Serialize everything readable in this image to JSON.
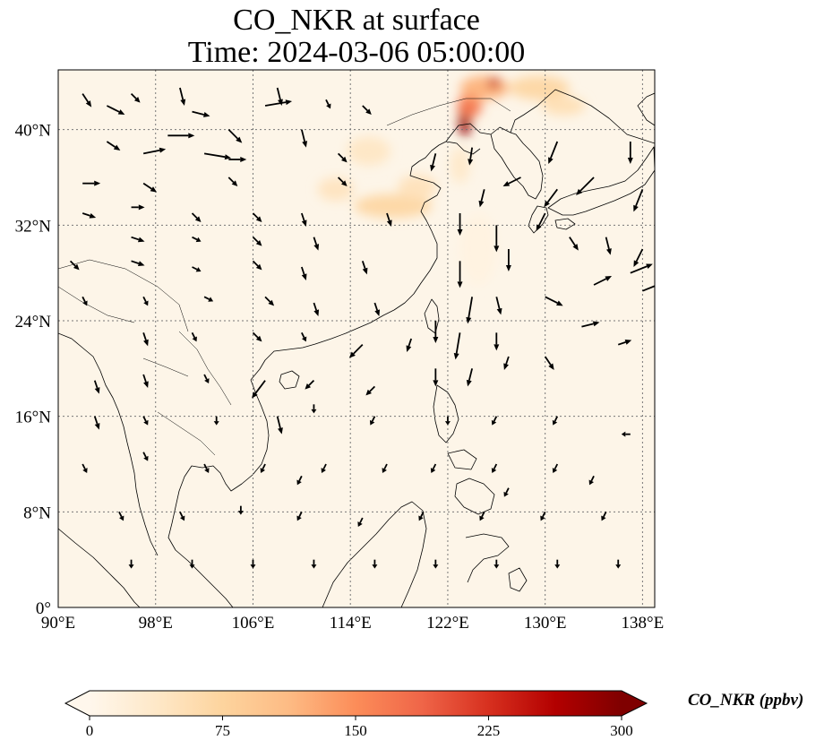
{
  "title": {
    "line1": "CO_NKR at surface",
    "line2": "Time: 2024-03-06 05:00:00"
  },
  "map": {
    "lon_range": [
      90,
      139
    ],
    "lat_range": [
      0,
      45
    ],
    "lon_ticks": [
      {
        "value": 90,
        "label": "90°E"
      },
      {
        "value": 98,
        "label": "98°E"
      },
      {
        "value": 106,
        "label": "106°E"
      },
      {
        "value": 114,
        "label": "114°E"
      },
      {
        "value": 122,
        "label": "122°E"
      },
      {
        "value": 130,
        "label": "130°E"
      },
      {
        "value": 138,
        "label": "138°E"
      }
    ],
    "lat_ticks": [
      {
        "value": 0,
        "label": "0°"
      },
      {
        "value": 8,
        "label": "8°N"
      },
      {
        "value": 16,
        "label": "16°N"
      },
      {
        "value": 24,
        "label": "24°N"
      },
      {
        "value": 32,
        "label": "32°N"
      },
      {
        "value": 40,
        "label": "40°N"
      }
    ],
    "gridlines": true,
    "background_color": "#fdf5e8",
    "plumes": [
      {
        "lon": 112.8,
        "lat": 35.0,
        "rlon": 1.5,
        "rlat": 1.0,
        "value": 45
      },
      {
        "lon": 115.5,
        "lat": 38.2,
        "rlon": 1.8,
        "rlat": 1.2,
        "value": 40
      },
      {
        "lon": 117.5,
        "lat": 33.6,
        "rlon": 3.2,
        "rlat": 1.0,
        "value": 70
      },
      {
        "lon": 119.5,
        "lat": 35.2,
        "rlon": 1.6,
        "rlat": 1.0,
        "value": 50
      },
      {
        "lon": 123.4,
        "lat": 40.8,
        "rlon": 0.5,
        "rlat": 1.4,
        "value": 285
      },
      {
        "lon": 123.8,
        "lat": 42.0,
        "rlon": 1.0,
        "rlat": 1.0,
        "value": 170
      },
      {
        "lon": 125.0,
        "lat": 43.5,
        "rlon": 2.0,
        "rlat": 1.0,
        "value": 120
      },
      {
        "lon": 125.8,
        "lat": 43.9,
        "rlon": 0.5,
        "rlat": 0.4,
        "value": 250
      },
      {
        "lon": 129.5,
        "lat": 43.5,
        "rlon": 2.5,
        "rlat": 1.0,
        "value": 70
      },
      {
        "lon": 131.5,
        "lat": 42.0,
        "rlon": 1.8,
        "rlat": 0.8,
        "value": 55
      },
      {
        "lon": 123.0,
        "lat": 37.0,
        "rlon": 0.8,
        "rlat": 1.5,
        "value": 35
      },
      {
        "lon": 124.5,
        "lat": 30.0,
        "rlon": 1.5,
        "rlat": 3.0,
        "value": 12
      }
    ],
    "wind_vectors": [
      [
        92,
        43,
        1,
        -1.5
      ],
      [
        96,
        43,
        1,
        -1
      ],
      [
        100,
        43.5,
        0.5,
        -2
      ],
      [
        108,
        43.5,
        0.5,
        -2
      ],
      [
        112,
        42.5,
        0.5,
        -1
      ],
      [
        94,
        42,
        2,
        -1
      ],
      [
        101,
        41.5,
        2,
        -0.5
      ],
      [
        107,
        42,
        3,
        0.5
      ],
      [
        115,
        42,
        1,
        -1
      ],
      [
        94,
        39,
        1.5,
        -1
      ],
      [
        99,
        39.5,
        3,
        0
      ],
      [
        104,
        40,
        1.5,
        -1.5
      ],
      [
        110,
        40,
        0.5,
        -2
      ],
      [
        97,
        38,
        2.5,
        0.5
      ],
      [
        102,
        38,
        3,
        -0.5
      ],
      [
        104,
        37.5,
        2,
        0
      ],
      [
        113,
        38,
        1,
        -1
      ],
      [
        92,
        35.5,
        2,
        0
      ],
      [
        97,
        35.5,
        1.5,
        -1
      ],
      [
        104,
        36,
        1,
        -1
      ],
      [
        113,
        36,
        1,
        -1
      ],
      [
        92,
        33,
        1.5,
        -0.5
      ],
      [
        96,
        33.5,
        1.5,
        0
      ],
      [
        101,
        33,
        1,
        -1
      ],
      [
        106,
        33,
        1,
        -1
      ],
      [
        110,
        33,
        0.5,
        -1.5
      ],
      [
        117,
        33,
        0.5,
        -1.5
      ],
      [
        96,
        31,
        1.5,
        -0.5
      ],
      [
        101,
        31,
        1,
        -0.5
      ],
      [
        106,
        31,
        1,
        -1
      ],
      [
        111,
        31,
        0.5,
        -1.5
      ],
      [
        91,
        29,
        1,
        -1
      ],
      [
        96,
        29,
        1.5,
        -0.5
      ],
      [
        101,
        28.5,
        1,
        -0.5
      ],
      [
        106,
        29,
        1,
        -1
      ],
      [
        110,
        28.5,
        0.5,
        -1.5
      ],
      [
        115,
        29,
        0.5,
        -1.5
      ],
      [
        92,
        26,
        0.5,
        -1
      ],
      [
        97,
        26,
        0.5,
        -1
      ],
      [
        102,
        26,
        1,
        -0.5
      ],
      [
        107,
        26,
        1,
        -1
      ],
      [
        111,
        25.5,
        0.5,
        -1.5
      ],
      [
        116,
        25.5,
        0.5,
        -1.5
      ],
      [
        97,
        23,
        0.5,
        -1.5
      ],
      [
        101,
        23,
        0.5,
        -1
      ],
      [
        106,
        23,
        1,
        -1
      ],
      [
        110,
        23,
        0.5,
        -1
      ],
      [
        115,
        22,
        -1.5,
        -1.5
      ],
      [
        119,
        22.5,
        -0.5,
        -1.5
      ],
      [
        93,
        19,
        0.5,
        -1.5
      ],
      [
        97,
        19.5,
        0.5,
        -1.5
      ],
      [
        102,
        19.5,
        0.5,
        -1
      ],
      [
        107,
        19,
        -1.5,
        -2
      ],
      [
        111,
        19,
        -1,
        -1
      ],
      [
        116,
        18.5,
        -1,
        -1
      ],
      [
        93,
        16,
        0.5,
        -1.5
      ],
      [
        97,
        16,
        0.5,
        -1
      ],
      [
        103,
        16,
        0,
        -1
      ],
      [
        108,
        16,
        0.5,
        -2
      ],
      [
        111,
        17,
        0,
        -1
      ],
      [
        116,
        16,
        -0.5,
        -1
      ],
      [
        92,
        12,
        0.5,
        -1
      ],
      [
        97,
        13,
        0.5,
        -1
      ],
      [
        102,
        12,
        0.5,
        -1
      ],
      [
        107,
        12,
        -0.5,
        -1
      ],
      [
        112,
        12,
        -0.5,
        -1
      ],
      [
        117,
        12,
        -0.5,
        -1
      ],
      [
        95,
        8,
        0.5,
        -1
      ],
      [
        100,
        8,
        0.5,
        -1
      ],
      [
        105,
        8.5,
        0,
        -1
      ],
      [
        110,
        8,
        -0.5,
        -1
      ],
      [
        115,
        7.5,
        -0.5,
        -1
      ],
      [
        120,
        8,
        -0.5,
        -1
      ],
      [
        96,
        4,
        0,
        -1
      ],
      [
        101,
        4,
        0,
        -1
      ],
      [
        106,
        4,
        0,
        -1
      ],
      [
        111,
        4,
        0,
        -1
      ],
      [
        116,
        4,
        0,
        -1
      ],
      [
        121,
        4,
        0,
        -1
      ],
      [
        126,
        4,
        0,
        -1
      ],
      [
        131,
        4,
        0,
        -1
      ],
      [
        136,
        4,
        0,
        -1
      ],
      [
        121,
        38,
        -0.5,
        -2
      ],
      [
        124,
        38.5,
        -0.3,
        -2
      ],
      [
        125,
        35,
        -0.5,
        -2
      ],
      [
        123,
        33,
        0,
        -2.5
      ],
      [
        126,
        32,
        0,
        -3
      ],
      [
        127,
        30,
        0,
        -2.5
      ],
      [
        123,
        29,
        0,
        -3
      ],
      [
        124,
        26,
        -0.5,
        -3
      ],
      [
        126,
        26,
        0.5,
        -2
      ],
      [
        121,
        24,
        0,
        -2.5
      ],
      [
        123,
        23,
        -0.5,
        -3
      ],
      [
        126,
        23,
        0,
        -2
      ],
      [
        121,
        20,
        0,
        -2
      ],
      [
        124,
        20,
        -0.5,
        -2
      ],
      [
        127,
        21,
        -0.5,
        -1.5
      ],
      [
        130,
        21,
        1,
        -1.5
      ],
      [
        133,
        23.5,
        2,
        0.5
      ],
      [
        130,
        26,
        2,
        -1
      ],
      [
        134,
        27,
        2,
        1
      ],
      [
        137,
        28,
        2.5,
        1
      ],
      [
        138,
        26.5,
        2.5,
        1
      ],
      [
        132,
        31,
        1,
        -1.5
      ],
      [
        135,
        31,
        0.5,
        -2
      ],
      [
        138,
        30,
        -1,
        -2
      ],
      [
        131,
        35,
        -1.5,
        -2
      ],
      [
        134,
        36,
        -2,
        -2
      ],
      [
        138,
        35,
        -1,
        -2.5
      ],
      [
        137,
        39,
        0,
        -2.5
      ],
      [
        131,
        39,
        -1,
        -2.5
      ],
      [
        128,
        36,
        -2,
        -1
      ],
      [
        130,
        33,
        -1,
        -2
      ],
      [
        136,
        22,
        1.5,
        0.5
      ],
      [
        140,
        23,
        1,
        1
      ],
      [
        122,
        16,
        0,
        -1
      ],
      [
        126,
        16,
        -0.5,
        -1
      ],
      [
        131,
        16,
        -0.5,
        -1
      ],
      [
        137,
        14.5,
        -1,
        0
      ],
      [
        121,
        12,
        -0.5,
        -1
      ],
      [
        126,
        12,
        -0.5,
        -1
      ],
      [
        131,
        12,
        -0.5,
        -1
      ],
      [
        125,
        8,
        -0.5,
        -1
      ],
      [
        130,
        8,
        -0.5,
        -1
      ],
      [
        135,
        8,
        -0.5,
        -1
      ],
      [
        110,
        11,
        -0.5,
        -1
      ],
      [
        127,
        10,
        -0.5,
        -1
      ],
      [
        134,
        11,
        -0.5,
        -1
      ],
      [
        88.5,
        26,
        -2,
        0
      ],
      [
        88.5,
        22,
        -1.5,
        -0.5
      ],
      [
        88.5,
        16,
        -0.5,
        -1
      ]
    ]
  },
  "colorbar": {
    "title": "CO_NKR (ppbv)",
    "min": 0,
    "max": 300,
    "tick_values": [
      0,
      75,
      150,
      225,
      300
    ],
    "tick_labels": [
      "0",
      "75",
      "150",
      "225",
      "300"
    ],
    "colormap": [
      "#fff7ec",
      "#fee8c8",
      "#fdd49e",
      "#fdbb84",
      "#fc8d59",
      "#ef6548",
      "#d7301f",
      "#b30000",
      "#7f0000"
    ]
  }
}
